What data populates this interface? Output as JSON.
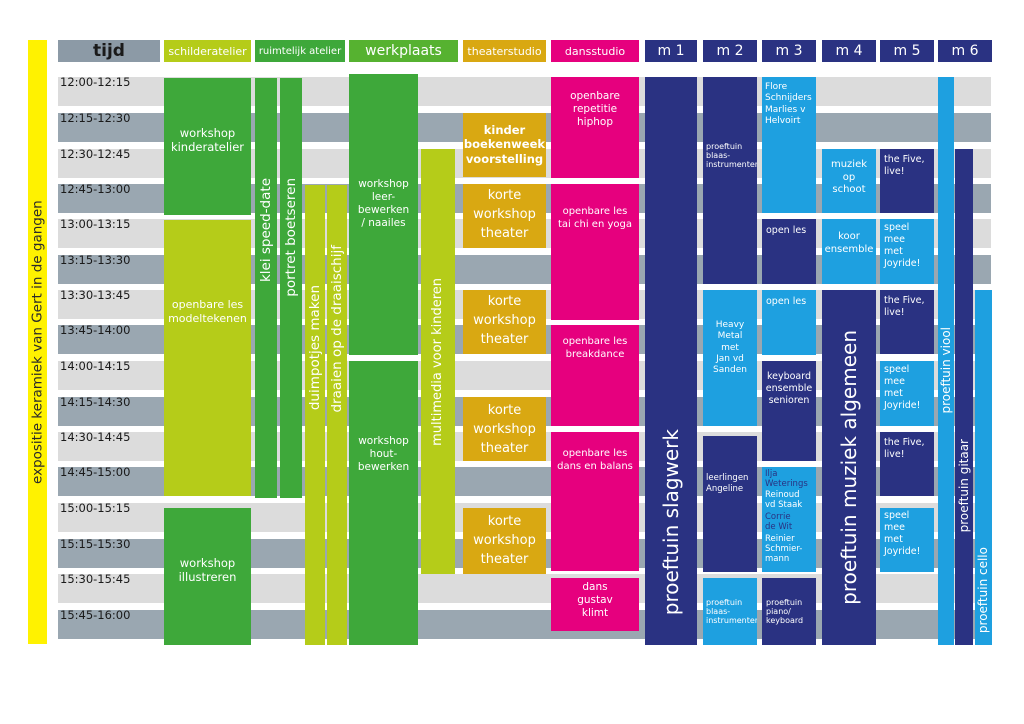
{
  "side_label": "expositie keramiek van Gert in de gangen",
  "headers": {
    "tijd": "tijd",
    "schilderatelier": "schilderatelier",
    "ruimtelijk": "ruimtelijk atelier",
    "werkplaats": "werkplaats",
    "theaterstudio": "theaterstudio",
    "dansstudio": "dansstudio",
    "m1": "m 1",
    "m2": "m 2",
    "m3": "m 3",
    "m4": "m 4",
    "m5": "m 5",
    "m6": "m 6"
  },
  "times": [
    "12:00-12:15",
    "12:15-12:30",
    "12:30-12:45",
    "12:45-13:00",
    "13:00-13:15",
    "13:15-13:30",
    "13:30-13:45",
    "13:45-14:00",
    "14:00-14:15",
    "14:15-14:30",
    "14:30-14:45",
    "14:45-15:00",
    "15:00-15:15",
    "15:15-15:30",
    "15:30-15:45",
    "15:45-16:00"
  ],
  "colors": {
    "lime": "#b5cc19",
    "green": "#3ea83a",
    "midgreen": "#56b230",
    "gold": "#d9a812",
    "pink": "#e6007e",
    "navy": "#2a3282",
    "blue": "#1ea0e0",
    "yellow": "#fff200",
    "row_light": "#dcdcdc",
    "row_dark": "#9aa7b1"
  },
  "blocks": {
    "b_kinderatelier": "workshop\nkinderatelier",
    "b_modeltekenen": "openbare les\nmodeltekenen",
    "b_illustreren": "workshop\nillustreren",
    "b_speeddate": "klei speed-date",
    "b_portret": "portret boetseren",
    "b_duimpotjes": "duimpotjes maken",
    "b_draaischijf": "draaien op de draaischijf",
    "b_leer": "workshop\nleer-\nbewerken\n/ naailes",
    "b_hout": "workshop\nhout-\nbewerken",
    "b_multimedia": "multimedia voor kinderen",
    "b_boekenweek": "kinder\nboekenweek\nvoorstelling",
    "b_korte1": "korte\nworkshop\ntheater",
    "b_korte2": "korte\nworkshop\ntheater",
    "b_korte3": "korte\nworkshop\ntheater",
    "b_korte4": "korte\nworkshop\ntheater",
    "b_hiphop": "openbare\nrepetitie\nhiphop",
    "b_taichi": "openbare les\ntai chi en yoga",
    "b_breakdance": "openbare les\nbreakdance",
    "b_dansbalans": "openbare les\ndans en balans",
    "b_klimt": "dans\ngustav\nklimt",
    "b_slagwerk": "proeftuin slagwerk",
    "b_blaas1": "proeftuin\nblaas-\ninstrumenten",
    "b_heavymetal": "Heavy\nMetal\nmet\nJan vd\nSanden",
    "b_angeline": "leerlingen\nAngeline",
    "b_blaas2": "proeftuin\nblaas-\ninstrumenten",
    "b_flore": "Flore\nSchnijders\nMarlies  v\nHelvoirt",
    "b_openles1": "open les",
    "b_openles2": "open les",
    "b_keyboardens": "keyboard\nensemble\nsenioren",
    "b_ilja_a": "Ilja\nWeterings",
    "b_ilja_b": "Reinoud\nvd Staak",
    "b_ilja_c": "Corrie\nde Wit",
    "b_ilja_d": "Reinier\nSchmier-\nmann",
    "b_pianokey": "proeftuin\npiano/\nkeyboard",
    "b_muziekschool": "muziek\nop\nschoot",
    "b_koor": "koor\nensemble",
    "b_muziekalg": "proeftuin muziek algemeen",
    "b_five1": "the Five,\nlive!",
    "b_speelmee1": "speel\nmee\nmet\nJoyride!",
    "b_five2": "the Five,\nlive!",
    "b_speelmee2": "speel\nmee\nmet\nJoyride!",
    "b_five3": "the Five,\nlive!",
    "b_speelmee3": "speel\nmee\nmet\nJoyride!",
    "b_viool": "proeftuin viool",
    "b_gitaar": "proeftuin gitaar",
    "b_cello": "proeftuin cello"
  }
}
